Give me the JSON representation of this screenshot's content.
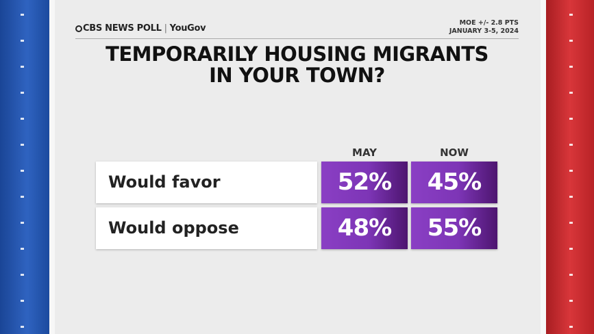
{
  "header": {
    "logo": "CBS NEWS POLL",
    "partner": "YouGov",
    "moe": "MOE +/- 2.8 PTS",
    "date": "JANUARY 3-5, 2024"
  },
  "title": [
    "TEMPORARILY HOUSING MIGRANTS",
    "IN YOUR TOWN?"
  ],
  "table": {
    "columns": [
      "MAY",
      "NOW"
    ],
    "rows": [
      [
        "Would favor",
        "52%",
        "45%"
      ],
      [
        "Would oppose",
        "48%",
        "55%"
      ]
    ]
  }
}
